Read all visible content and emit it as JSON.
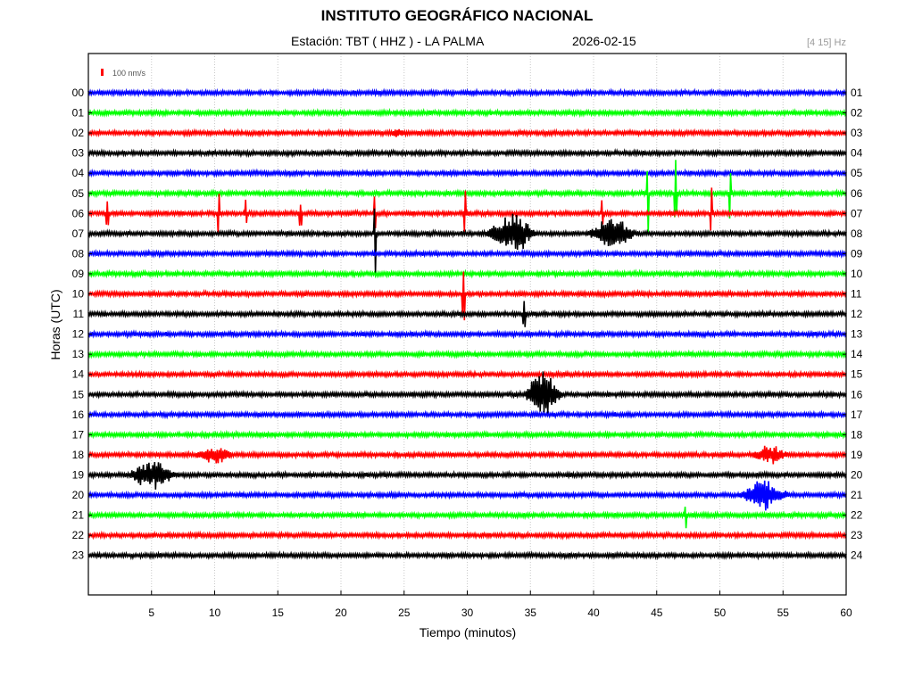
{
  "header": {
    "title": "INSTITUTO GEOGRÁFICO NACIONAL",
    "station_line": "Estación:  TBT ( HHZ ) - LA PALMA",
    "date": "2026-02-15",
    "band": "[4 15] Hz"
  },
  "chart_data": {
    "type": "line",
    "title": "INSTITUTO GEOGRÁFICO NACIONAL",
    "xlabel": "Tiempo (minutos)",
    "ylabel": "Horas (UTC)",
    "xlim": [
      0,
      60
    ],
    "x_ticks": [
      5,
      10,
      15,
      20,
      25,
      30,
      35,
      40,
      45,
      50,
      55,
      60
    ],
    "grid": true,
    "scale_bar": "100 nm/s",
    "trace_colors": [
      "#0000ff",
      "#00ff00",
      "#ff0000",
      "#000000"
    ],
    "left_labels": [
      "00",
      "01",
      "02",
      "03",
      "04",
      "05",
      "06",
      "07",
      "08",
      "09",
      "10",
      "11",
      "12",
      "13",
      "14",
      "15",
      "16",
      "17",
      "18",
      "19",
      "20",
      "21",
      "22",
      "23"
    ],
    "right_labels": [
      "01",
      "02",
      "03",
      "04",
      "05",
      "06",
      "07",
      "08",
      "09",
      "10",
      "11",
      "12",
      "13",
      "14",
      "15",
      "16",
      "17",
      "18",
      "19",
      "20",
      "21",
      "22",
      "23",
      "24"
    ],
    "events": [
      {
        "hour": 7,
        "minute": 33.5,
        "amplitude": 2.2,
        "duration": 4.5
      },
      {
        "hour": 7,
        "minute": 41.5,
        "amplitude": 1.6,
        "duration": 4.5
      },
      {
        "hour": 15,
        "minute": 36,
        "amplitude": 2.4,
        "duration": 3.5
      },
      {
        "hour": 18,
        "minute": 10,
        "amplitude": 0.9,
        "duration": 3.5
      },
      {
        "hour": 18,
        "minute": 54,
        "amplitude": 0.8,
        "duration": 3.5
      },
      {
        "hour": 19,
        "minute": 5,
        "amplitude": 1.4,
        "duration": 4.5
      },
      {
        "hour": 20,
        "minute": 53.5,
        "amplitude": 1.5,
        "duration": 4.5
      },
      {
        "hour": 2,
        "minute": 24.5,
        "amplitude": 0.3,
        "duration": 1.5
      }
    ],
    "spikes": [
      {
        "hour": 6,
        "minute": 1.5,
        "amplitude": 0.7
      },
      {
        "hour": 6,
        "minute": 10.3,
        "amplitude": 1.1
      },
      {
        "hour": 6,
        "minute": 12.5,
        "amplitude": 0.7
      },
      {
        "hour": 6,
        "minute": 16.8,
        "amplitude": 0.6
      },
      {
        "hour": 6,
        "minute": 22.7,
        "amplitude": 1.2
      },
      {
        "hour": 6,
        "minute": 29.8,
        "amplitude": 1.3
      },
      {
        "hour": 6,
        "minute": 40.7,
        "amplitude": 1.0
      },
      {
        "hour": 6,
        "minute": 49.3,
        "amplitude": 1.3
      },
      {
        "hour": 7,
        "minute": 22.7,
        "amplitude": 2.0
      },
      {
        "hour": 5,
        "minute": 44.3,
        "amplitude": 2.0
      },
      {
        "hour": 5,
        "minute": 46.5,
        "amplitude": 1.6
      },
      {
        "hour": 5,
        "minute": 50.8,
        "amplitude": 1.2
      },
      {
        "hour": 10,
        "minute": 29.7,
        "amplitude": 1.5
      },
      {
        "hour": 11,
        "minute": 34.5,
        "amplitude": 0.8
      },
      {
        "hour": 21,
        "minute": 47.3,
        "amplitude": 0.6
      }
    ]
  }
}
